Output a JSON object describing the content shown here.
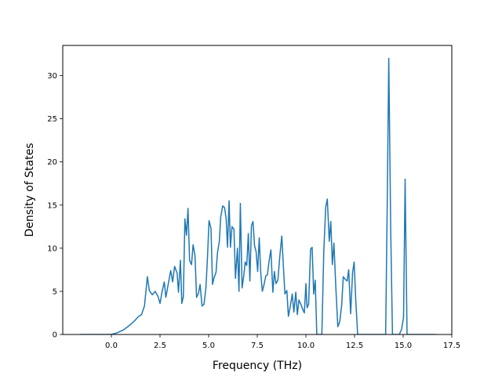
{
  "chart_data": {
    "type": "line",
    "title": "",
    "xlabel": "Frequency (THz)",
    "ylabel": "Density of States",
    "xlim": [
      -2.5,
      17.5
    ],
    "ylim": [
      0,
      33.5
    ],
    "xticks": [
      {
        "value": 0.0,
        "label": "0.0"
      },
      {
        "value": 2.5,
        "label": "2.5"
      },
      {
        "value": 5.0,
        "label": "5.0"
      },
      {
        "value": 7.5,
        "label": "7.5"
      },
      {
        "value": 10.0,
        "label": "10.0"
      },
      {
        "value": 12.5,
        "label": "12.5"
      },
      {
        "value": 15.0,
        "label": "15.0"
      },
      {
        "value": 17.5,
        "label": "17.5"
      }
    ],
    "yticks": [
      {
        "value": 0,
        "label": "0"
      },
      {
        "value": 5,
        "label": "5"
      },
      {
        "value": 10,
        "label": "10"
      },
      {
        "value": 15,
        "label": "15"
      },
      {
        "value": 20,
        "label": "20"
      },
      {
        "value": 25,
        "label": "25"
      },
      {
        "value": 30,
        "label": "30"
      }
    ],
    "grid": false,
    "legend": "none",
    "series": [
      {
        "color": "#1f77b4",
        "points": [
          [
            -1.6,
            0
          ],
          [
            0.0,
            0
          ],
          [
            0.3,
            0.2
          ],
          [
            0.6,
            0.5
          ],
          [
            0.9,
            1.0
          ],
          [
            1.2,
            1.6
          ],
          [
            1.4,
            2.1
          ],
          [
            1.55,
            2.3
          ],
          [
            1.7,
            3.3
          ],
          [
            1.85,
            6.7
          ],
          [
            1.95,
            5.1
          ],
          [
            2.1,
            4.6
          ],
          [
            2.25,
            5.0
          ],
          [
            2.4,
            4.4
          ],
          [
            2.5,
            3.6
          ],
          [
            2.6,
            4.9
          ],
          [
            2.72,
            6.1
          ],
          [
            2.8,
            4.3
          ],
          [
            2.92,
            5.8
          ],
          [
            3.05,
            7.4
          ],
          [
            3.15,
            6.1
          ],
          [
            3.25,
            7.9
          ],
          [
            3.38,
            7.1
          ],
          [
            3.45,
            4.9
          ],
          [
            3.55,
            8.6
          ],
          [
            3.62,
            3.6
          ],
          [
            3.7,
            4.4
          ],
          [
            3.78,
            13.4
          ],
          [
            3.86,
            11.5
          ],
          [
            3.94,
            14.6
          ],
          [
            4.02,
            8.6
          ],
          [
            4.12,
            8.1
          ],
          [
            4.2,
            10.4
          ],
          [
            4.3,
            9.1
          ],
          [
            4.38,
            4.3
          ],
          [
            4.48,
            4.8
          ],
          [
            4.56,
            5.8
          ],
          [
            4.66,
            3.3
          ],
          [
            4.76,
            3.5
          ],
          [
            4.86,
            5.4
          ],
          [
            4.94,
            8.9
          ],
          [
            5.02,
            13.2
          ],
          [
            5.12,
            12.3
          ],
          [
            5.2,
            5.8
          ],
          [
            5.28,
            6.6
          ],
          [
            5.38,
            7.2
          ],
          [
            5.45,
            9.4
          ],
          [
            5.55,
            10.8
          ],
          [
            5.62,
            13.6
          ],
          [
            5.72,
            14.9
          ],
          [
            5.82,
            14.7
          ],
          [
            5.9,
            13.4
          ],
          [
            5.97,
            10.1
          ],
          [
            6.05,
            15.5
          ],
          [
            6.12,
            10.1
          ],
          [
            6.2,
            12.5
          ],
          [
            6.3,
            12.2
          ],
          [
            6.38,
            6.5
          ],
          [
            6.48,
            10.0
          ],
          [
            6.56,
            5.0
          ],
          [
            6.63,
            15.2
          ],
          [
            6.72,
            5.4
          ],
          [
            6.8,
            6.7
          ],
          [
            6.88,
            8.4
          ],
          [
            6.96,
            8.0
          ],
          [
            7.04,
            11.7
          ],
          [
            7.12,
            6.2
          ],
          [
            7.2,
            12.6
          ],
          [
            7.28,
            13.1
          ],
          [
            7.36,
            10.3
          ],
          [
            7.44,
            9.6
          ],
          [
            7.52,
            7.3
          ],
          [
            7.6,
            11.2
          ],
          [
            7.68,
            7.1
          ],
          [
            7.76,
            5.0
          ],
          [
            7.84,
            5.7
          ],
          [
            7.94,
            6.8
          ],
          [
            8.02,
            6.9
          ],
          [
            8.1,
            8.4
          ],
          [
            8.2,
            9.8
          ],
          [
            8.3,
            4.9
          ],
          [
            8.38,
            7.3
          ],
          [
            8.46,
            5.9
          ],
          [
            8.56,
            6.3
          ],
          [
            8.66,
            9.1
          ],
          [
            8.76,
            11.4
          ],
          [
            8.84,
            8.0
          ],
          [
            8.92,
            4.7
          ],
          [
            9.02,
            5.1
          ],
          [
            9.1,
            2.1
          ],
          [
            9.2,
            3.3
          ],
          [
            9.3,
            4.7
          ],
          [
            9.38,
            2.6
          ],
          [
            9.48,
            4.9
          ],
          [
            9.56,
            2.3
          ],
          [
            9.64,
            4.0
          ],
          [
            9.74,
            3.5
          ],
          [
            9.84,
            2.9
          ],
          [
            9.92,
            2.5
          ],
          [
            10.0,
            5.9
          ],
          [
            10.06,
            3.1
          ],
          [
            10.14,
            3.5
          ],
          [
            10.24,
            9.9
          ],
          [
            10.32,
            10.1
          ],
          [
            10.4,
            4.7
          ],
          [
            10.48,
            6.3
          ],
          [
            10.56,
            0
          ],
          [
            10.82,
            0
          ],
          [
            10.92,
            9.7
          ],
          [
            11.02,
            14.8
          ],
          [
            11.1,
            15.7
          ],
          [
            11.2,
            10.8
          ],
          [
            11.28,
            13.1
          ],
          [
            11.36,
            8.1
          ],
          [
            11.44,
            10.6
          ],
          [
            11.54,
            5.4
          ],
          [
            11.64,
            0.9
          ],
          [
            11.74,
            1.5
          ],
          [
            11.84,
            3.4
          ],
          [
            11.92,
            6.7
          ],
          [
            12.02,
            6.4
          ],
          [
            12.12,
            6.2
          ],
          [
            12.2,
            7.5
          ],
          [
            12.3,
            2.4
          ],
          [
            12.4,
            7.2
          ],
          [
            12.48,
            8.4
          ],
          [
            12.56,
            4.1
          ],
          [
            12.66,
            0
          ],
          [
            14.1,
            0
          ],
          [
            14.18,
            15.0
          ],
          [
            14.26,
            32.0
          ],
          [
            14.36,
            12.0
          ],
          [
            14.45,
            0
          ],
          [
            14.8,
            0
          ],
          [
            14.92,
            0.6
          ],
          [
            15.02,
            2.0
          ],
          [
            15.1,
            18.0
          ],
          [
            15.2,
            0
          ],
          [
            16.7,
            0
          ]
        ]
      }
    ]
  }
}
